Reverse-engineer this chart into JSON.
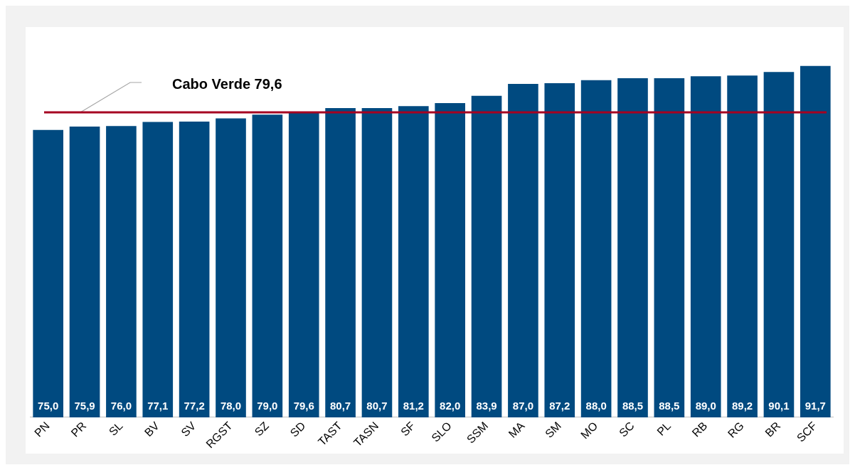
{
  "chart_data": {
    "type": "bar",
    "categories": [
      "PN",
      "PR",
      "SL",
      "BV",
      "SV",
      "RGST",
      "SZ",
      "SD",
      "TAST",
      "TASN",
      "SF",
      "SLO",
      "SSM",
      "MA",
      "SM",
      "MO",
      "SC",
      "PL",
      "RB",
      "RG",
      "BR",
      "SCF"
    ],
    "values": [
      75.0,
      75.9,
      76.0,
      77.1,
      77.2,
      78.0,
      79.0,
      79.6,
      80.7,
      80.7,
      81.2,
      82.0,
      83.9,
      87.0,
      87.2,
      88.0,
      88.5,
      88.5,
      89.0,
      89.2,
      90.1,
      91.7
    ],
    "value_labels": [
      "75,0",
      "75,9",
      "76,0",
      "77,1",
      "77,2",
      "78,0",
      "79,0",
      "79,6",
      "80,7",
      "80,7",
      "81,2",
      "82,0",
      "83,9",
      "87,0",
      "87,2",
      "88,0",
      "88,5",
      "88,5",
      "89,0",
      "89,2",
      "90,1",
      "91,7"
    ],
    "color": "#004a80",
    "ref_lines": [
      {
        "axis": "y",
        "value": 79.6,
        "label": "Cabo Verde 79,6",
        "color": "#a50021"
      }
    ],
    "grid": false,
    "legend": false
  }
}
